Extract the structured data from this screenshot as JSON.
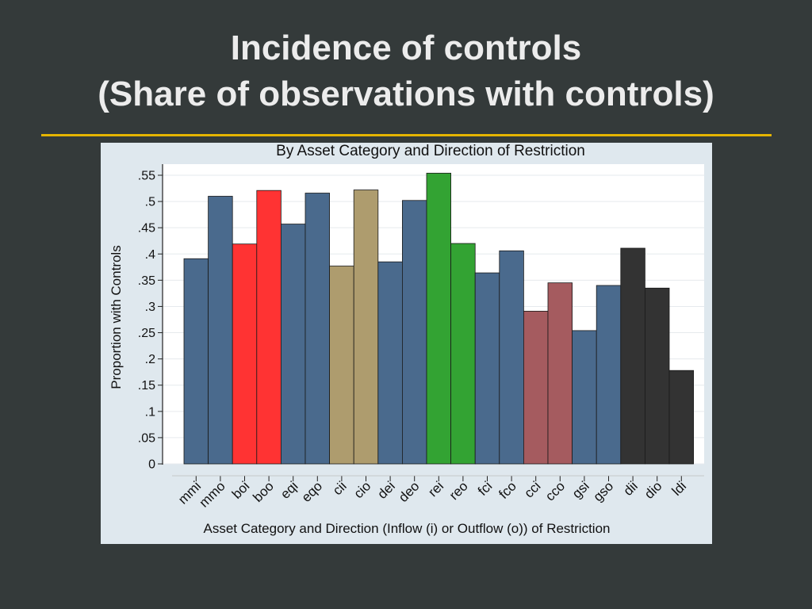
{
  "slide": {
    "title_line1": "Incidence of controls",
    "title_line2": "(Share of observations with controls)"
  },
  "colors": {
    "background": "#343a3a",
    "accent_rule": "#e5b400",
    "chart_background": "#dfe8ee",
    "plot_background": "#ffffff",
    "blue": "#4a6a8d",
    "red": "#ff3333",
    "tan": "#ae9c6e",
    "green": "#33a333",
    "rose": "#a55b5f",
    "black": "#333333"
  },
  "chart_data": {
    "type": "bar",
    "title": "By Asset Category and Direction of Restriction",
    "xlabel": "Asset Category and Direction (Inflow (i) or Outflow (o)) of Restriction",
    "ylabel": "Proportion with Controls",
    "ylim": [
      0,
      0.55
    ],
    "yticks": [
      0,
      0.05,
      0.1,
      0.15,
      0.2,
      0.25,
      0.3,
      0.35,
      0.4,
      0.45,
      0.5,
      0.55
    ],
    "ytick_labels": [
      "0",
      ".05",
      ".1",
      ".15",
      ".2",
      ".25",
      ".3",
      ".35",
      ".4",
      ".45",
      ".5",
      ".55"
    ],
    "grid": true,
    "categories": [
      "mmi",
      "mmo",
      "boi",
      "boo",
      "eqi",
      "eqo",
      "cii",
      "cio",
      "dei",
      "deo",
      "rei",
      "reo",
      "fci",
      "fco",
      "cci",
      "cco",
      "gsi",
      "gso",
      "dii",
      "dio",
      "ldi"
    ],
    "values": [
      0.391,
      0.51,
      0.419,
      0.521,
      0.457,
      0.516,
      0.377,
      0.522,
      0.385,
      0.502,
      0.554,
      0.42,
      0.364,
      0.406,
      0.291,
      0.345,
      0.254,
      0.34,
      0.411,
      0.335,
      0.178
    ],
    "bar_colors": [
      "blue",
      "blue",
      "red",
      "red",
      "blue",
      "blue",
      "tan",
      "tan",
      "blue",
      "blue",
      "green",
      "green",
      "blue",
      "blue",
      "rose",
      "rose",
      "blue",
      "blue",
      "black",
      "black",
      "black"
    ]
  }
}
